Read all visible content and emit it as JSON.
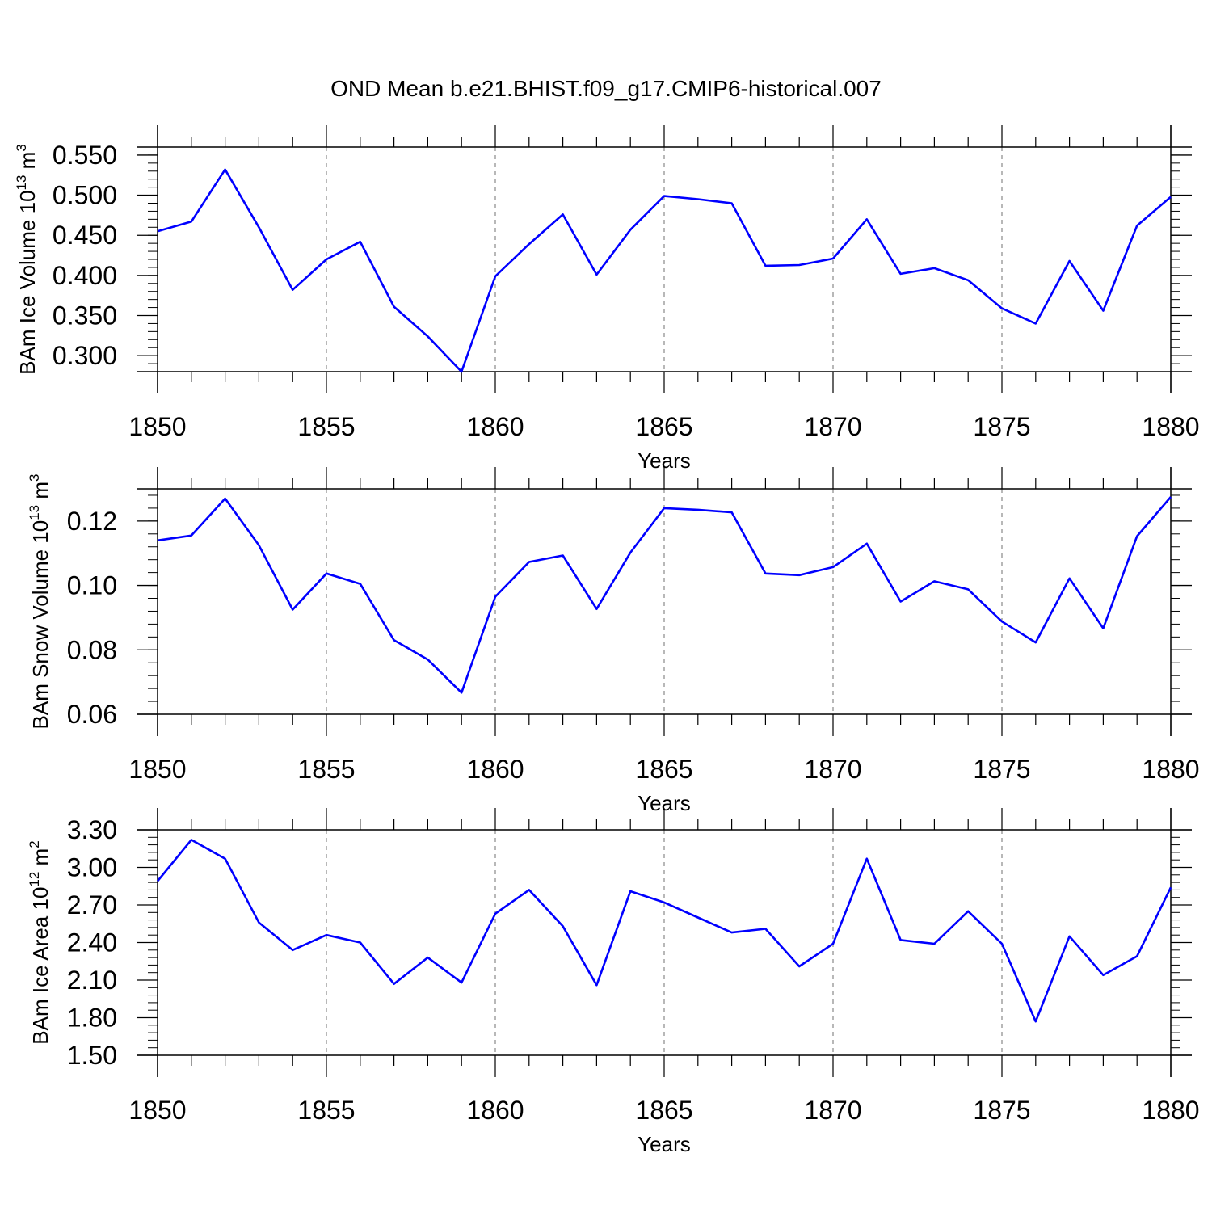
{
  "title": "OND Mean b.e21.BHIST.f09_g17.CMIP6-historical.007",
  "line_color": "#0000ff",
  "grid_color": "#888888",
  "chart_data": [
    {
      "type": "line",
      "ylabel": {
        "text": "BAm Ice Volume 10",
        "exp": "13",
        "unit": " m",
        "unit_exp": "3"
      },
      "xlabel": "Years",
      "xlim": [
        1850,
        1880
      ],
      "ylim": [
        0.28,
        0.56
      ],
      "yticks": [
        "0.300",
        "0.350",
        "0.400",
        "0.450",
        "0.500",
        "0.550"
      ],
      "xticks": [
        "1850",
        "1855",
        "1860",
        "1865",
        "1870",
        "1875",
        "1880"
      ],
      "x": [
        1850,
        1851,
        1852,
        1853,
        1854,
        1855,
        1856,
        1857,
        1858,
        1859,
        1860,
        1861,
        1862,
        1863,
        1864,
        1865,
        1866,
        1867,
        1868,
        1869,
        1870,
        1871,
        1872,
        1873,
        1874,
        1875,
        1876,
        1877,
        1878,
        1879,
        1880
      ],
      "values": [
        0.455,
        0.467,
        0.532,
        0.46,
        0.382,
        0.42,
        0.442,
        0.361,
        0.324,
        0.28,
        0.399,
        0.439,
        0.476,
        0.401,
        0.457,
        0.499,
        0.495,
        0.49,
        0.412,
        0.413,
        0.421,
        0.47,
        0.402,
        0.409,
        0.394,
        0.359,
        0.34,
        0.418,
        0.356,
        0.462,
        0.498
      ]
    },
    {
      "type": "line",
      "ylabel": {
        "text": "BAm Snow Volume 10",
        "exp": "13",
        "unit": " m",
        "unit_exp": "3"
      },
      "xlabel": "Years",
      "xlim": [
        1850,
        1880
      ],
      "ylim": [
        0.06,
        0.13
      ],
      "yticks": [
        "0.06",
        "0.08",
        "0.10",
        "0.12"
      ],
      "xticks": [
        "1850",
        "1855",
        "1860",
        "1865",
        "1870",
        "1875",
        "1880"
      ],
      "x": [
        1850,
        1851,
        1852,
        1853,
        1854,
        1855,
        1856,
        1857,
        1858,
        1859,
        1860,
        1861,
        1862,
        1863,
        1864,
        1865,
        1866,
        1867,
        1868,
        1869,
        1870,
        1871,
        1872,
        1873,
        1874,
        1875,
        1876,
        1877,
        1878,
        1879,
        1880
      ],
      "values": [
        0.114,
        0.1155,
        0.127,
        0.1125,
        0.0925,
        0.1037,
        0.1005,
        0.083,
        0.077,
        0.0667,
        0.0965,
        0.1073,
        0.1093,
        0.0927,
        0.1102,
        0.124,
        0.1235,
        0.1227,
        0.1037,
        0.1032,
        0.1057,
        0.113,
        0.095,
        0.1013,
        0.0988,
        0.0888,
        0.0823,
        0.1022,
        0.0867,
        0.1153,
        0.1275
      ]
    },
    {
      "type": "line",
      "ylabel": {
        "text": "BAm Ice Area 10",
        "exp": "12",
        "unit": " m",
        "unit_exp": "2"
      },
      "xlabel": "Years",
      "xlim": [
        1850,
        1880
      ],
      "ylim": [
        1.5,
        3.3
      ],
      "yticks": [
        "1.50",
        "1.80",
        "2.10",
        "2.40",
        "2.70",
        "3.00",
        "3.30"
      ],
      "xticks": [
        "1850",
        "1855",
        "1860",
        "1865",
        "1870",
        "1875",
        "1880"
      ],
      "x": [
        1850,
        1851,
        1852,
        1853,
        1854,
        1855,
        1856,
        1857,
        1858,
        1859,
        1860,
        1861,
        1862,
        1863,
        1864,
        1865,
        1866,
        1867,
        1868,
        1869,
        1870,
        1871,
        1872,
        1873,
        1874,
        1875,
        1876,
        1877,
        1878,
        1879,
        1880
      ],
      "values": [
        2.89,
        3.22,
        3.07,
        2.56,
        2.34,
        2.46,
        2.4,
        2.07,
        2.28,
        2.08,
        2.63,
        2.82,
        2.53,
        2.06,
        2.81,
        2.72,
        2.6,
        2.48,
        2.51,
        2.21,
        2.39,
        3.07,
        2.42,
        2.39,
        2.65,
        2.39,
        1.77,
        2.45,
        2.14,
        2.29,
        2.84
      ]
    }
  ]
}
